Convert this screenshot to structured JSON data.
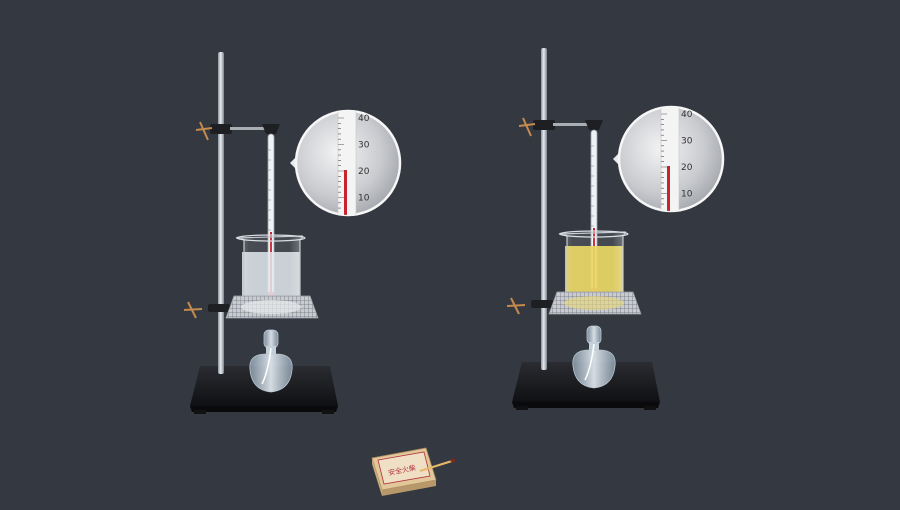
{
  "setups": [
    {
      "id": "left",
      "liquid": "water",
      "liquid_color": "#dfe6ec",
      "thermometer_reading": 20,
      "magnifier_ticks": [
        "40",
        "30",
        "20",
        "10"
      ]
    },
    {
      "id": "right",
      "liquid": "oil",
      "liquid_color": "#e8d456",
      "thermometer_reading": 20,
      "magnifier_ticks": [
        "40",
        "30",
        "20",
        "10"
      ]
    }
  ],
  "matchbox": {
    "label": "安全火柴"
  },
  "icons": [
    "iron-stand",
    "clamp",
    "thermometer",
    "beaker",
    "wire-gauze",
    "alcohol-lamp",
    "magnifier",
    "matchbox",
    "match-stick"
  ]
}
